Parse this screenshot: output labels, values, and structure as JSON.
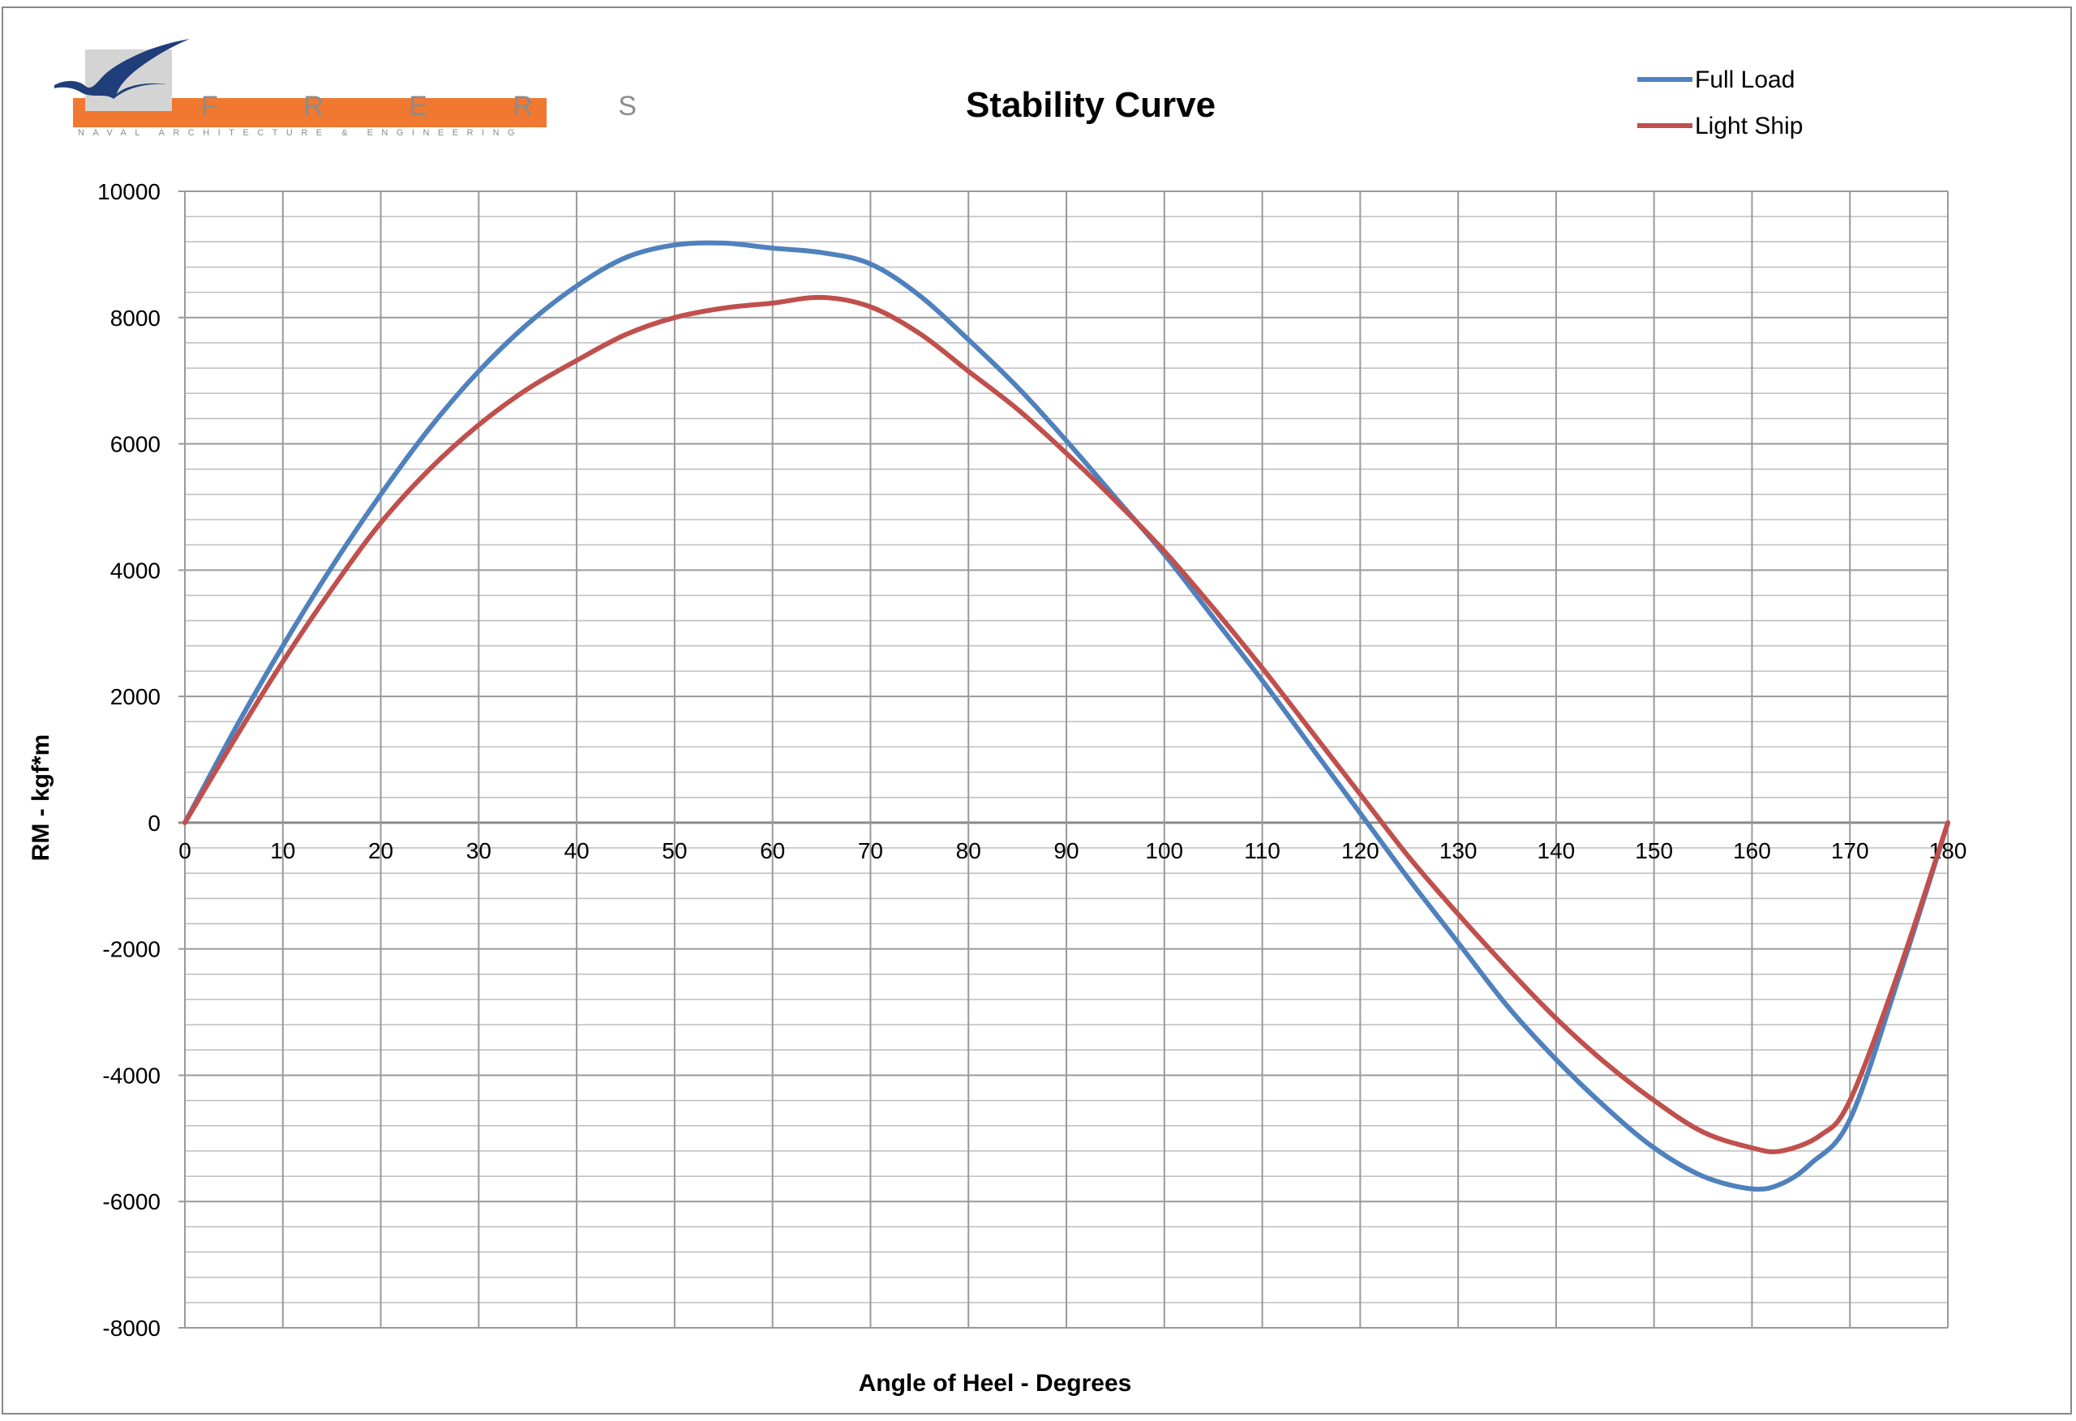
{
  "logo": {
    "name": "FRERS",
    "letters": "F R E R S",
    "tagline": "NAVAL ARCHITECTURE & ENGINEERING",
    "colors": {
      "bar": "#f07830",
      "box": "#d4d4d4",
      "ink": "#1f3e7a"
    }
  },
  "chart_data": {
    "type": "line",
    "title": "Stability Curve",
    "xlabel": "Angle of Heel - Degrees",
    "ylabel": "RM  - kgf*m",
    "xlim": [
      0,
      180
    ],
    "ylim": [
      -8000,
      10000
    ],
    "x_ticks": [
      0,
      10,
      20,
      30,
      40,
      50,
      60,
      70,
      80,
      90,
      100,
      110,
      120,
      130,
      140,
      150,
      160,
      170,
      180
    ],
    "y_ticks": [
      10000,
      8000,
      6000,
      4000,
      2000,
      0,
      -2000,
      -4000,
      -6000,
      -8000
    ],
    "y_minor_step": 400,
    "grid": true,
    "legend_position": "top-right",
    "series": [
      {
        "name": "Full Load",
        "color": "#4f81bd",
        "x": [
          0,
          5,
          10,
          15,
          20,
          25,
          30,
          35,
          40,
          45,
          50,
          55,
          60,
          65,
          70,
          75,
          80,
          85,
          90,
          95,
          100,
          105,
          110,
          115,
          120,
          125,
          130,
          135,
          140,
          145,
          150,
          155,
          160,
          163,
          166,
          170,
          175,
          180
        ],
        "values": [
          0,
          1450,
          2800,
          4050,
          5200,
          6250,
          7150,
          7900,
          8500,
          8950,
          9150,
          9180,
          9100,
          9030,
          8850,
          8350,
          7650,
          6900,
          6050,
          5150,
          4250,
          3250,
          2250,
          1200,
          150,
          -900,
          -1900,
          -2900,
          -3750,
          -4500,
          -5150,
          -5600,
          -5800,
          -5720,
          -5400,
          -4700,
          -2450,
          0
        ]
      },
      {
        "name": "Light Ship",
        "color": "#c0504d",
        "x": [
          0,
          5,
          10,
          15,
          20,
          25,
          30,
          35,
          40,
          45,
          50,
          55,
          60,
          65,
          70,
          75,
          80,
          85,
          90,
          95,
          100,
          105,
          110,
          115,
          120,
          125,
          130,
          135,
          140,
          145,
          150,
          155,
          160,
          163,
          167,
          170,
          175,
          180
        ],
        "values": [
          0,
          1300,
          2550,
          3700,
          4750,
          5600,
          6300,
          6870,
          7320,
          7730,
          8000,
          8150,
          8230,
          8320,
          8170,
          7750,
          7150,
          6550,
          5850,
          5100,
          4300,
          3400,
          2450,
          1450,
          450,
          -550,
          -1450,
          -2300,
          -3100,
          -3800,
          -4400,
          -4900,
          -5150,
          -5200,
          -4950,
          -4400,
          -2350,
          0
        ]
      }
    ]
  }
}
